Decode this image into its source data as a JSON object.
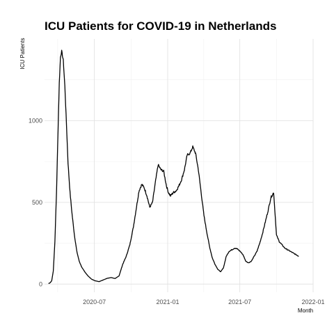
{
  "chart_data": {
    "type": "line",
    "title": "ICU Patients for COVID-19 in Netherlands",
    "xlabel": "Month",
    "ylabel": "ICU Patients",
    "xlim": [
      "2020-02-27",
      "2022-01-01"
    ],
    "ylim": [
      -50,
      1500
    ],
    "y_ticks": [
      0,
      500,
      1000
    ],
    "x_ticks": [
      {
        "date": "2020-07-01",
        "label": "2020-07"
      },
      {
        "date": "2021-01-01",
        "label": "2021-01"
      },
      {
        "date": "2021-07-01",
        "label": "2021-07"
      },
      {
        "date": "2022-01-01",
        "label": "2022-01"
      }
    ],
    "grid": true,
    "legend": "none",
    "series": [
      {
        "color": "#000000",
        "x": [
          "2020-03-08",
          "2020-03-12",
          "2020-03-16",
          "2020-03-20",
          "2020-03-24",
          "2020-03-28",
          "2020-04-01",
          "2020-04-04",
          "2020-04-07",
          "2020-04-10",
          "2020-04-14",
          "2020-04-18",
          "2020-04-22",
          "2020-04-26",
          "2020-05-01",
          "2020-05-06",
          "2020-05-12",
          "2020-05-18",
          "2020-05-24",
          "2020-05-31",
          "2020-06-07",
          "2020-06-15",
          "2020-06-24",
          "2020-07-03",
          "2020-07-13",
          "2020-07-23",
          "2020-08-02",
          "2020-08-12",
          "2020-08-22",
          "2020-09-01",
          "2020-09-10",
          "2020-09-19",
          "2020-09-28",
          "2020-10-07",
          "2020-10-14",
          "2020-10-21",
          "2020-10-28",
          "2020-11-03",
          "2020-11-10",
          "2020-11-17",
          "2020-11-24",
          "2020-12-01",
          "2020-12-08",
          "2020-12-15",
          "2020-12-22",
          "2020-12-29",
          "2021-01-03",
          "2021-01-08",
          "2021-01-15",
          "2021-01-22",
          "2021-01-29",
          "2021-02-05",
          "2021-02-12",
          "2021-02-19",
          "2021-02-26",
          "2021-03-05",
          "2021-03-12",
          "2021-03-19",
          "2021-03-26",
          "2021-04-02",
          "2021-04-09",
          "2021-04-16",
          "2021-04-23",
          "2021-04-30",
          "2021-05-07",
          "2021-05-14",
          "2021-05-21",
          "2021-05-28",
          "2021-06-04",
          "2021-06-11",
          "2021-06-18",
          "2021-06-25",
          "2021-07-02",
          "2021-07-09",
          "2021-07-16",
          "2021-07-23",
          "2021-07-30",
          "2021-08-06",
          "2021-08-13",
          "2021-08-20",
          "2021-08-27",
          "2021-09-03",
          "2021-09-10",
          "2021-09-17",
          "2021-09-24",
          "2021-10-01",
          "2021-10-08",
          "2021-10-15",
          "2021-10-22",
          "2021-10-29",
          "2021-11-05",
          "2021-11-12",
          "2021-11-19",
          "2021-11-26"
        ],
        "y": [
          3,
          8,
          20,
          80,
          260,
          560,
          950,
          1230,
          1390,
          1425,
          1370,
          1210,
          980,
          740,
          560,
          430,
          300,
          200,
          140,
          100,
          75,
          50,
          30,
          20,
          15,
          25,
          35,
          40,
          34,
          50,
          120,
          170,
          240,
          350,
          460,
          570,
          610,
          590,
          540,
          470,
          500,
          620,
          730,
          700,
          690,
          600,
          560,
          540,
          560,
          570,
          600,
          640,
          700,
          790,
          800,
          840,
          800,
          700,
          560,
          420,
          320,
          230,
          160,
          120,
          90,
          75,
          100,
          170,
          200,
          210,
          220,
          215,
          200,
          180,
          140,
          130,
          140,
          170,
          200,
          250,
          310,
          380,
          450,
          530,
          560,
          300,
          260,
          240,
          220,
          210,
          200,
          190,
          180,
          170
        ]
      }
    ]
  }
}
